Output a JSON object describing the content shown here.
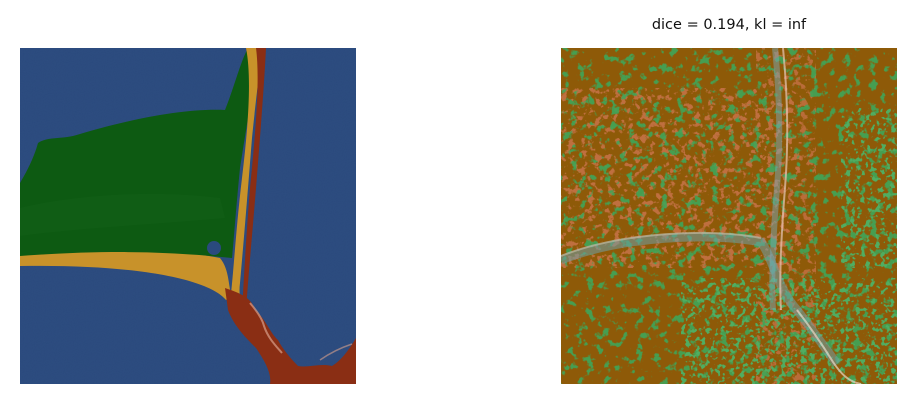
{
  "right_panel": {
    "title": "dice = 0.194, kl = inf"
  },
  "colors": {
    "water": "#2a4a7e",
    "land": "#0d5a12",
    "sand": "#c8922a",
    "edge": "#8a2e14",
    "background_right": "#8e5a08"
  }
}
